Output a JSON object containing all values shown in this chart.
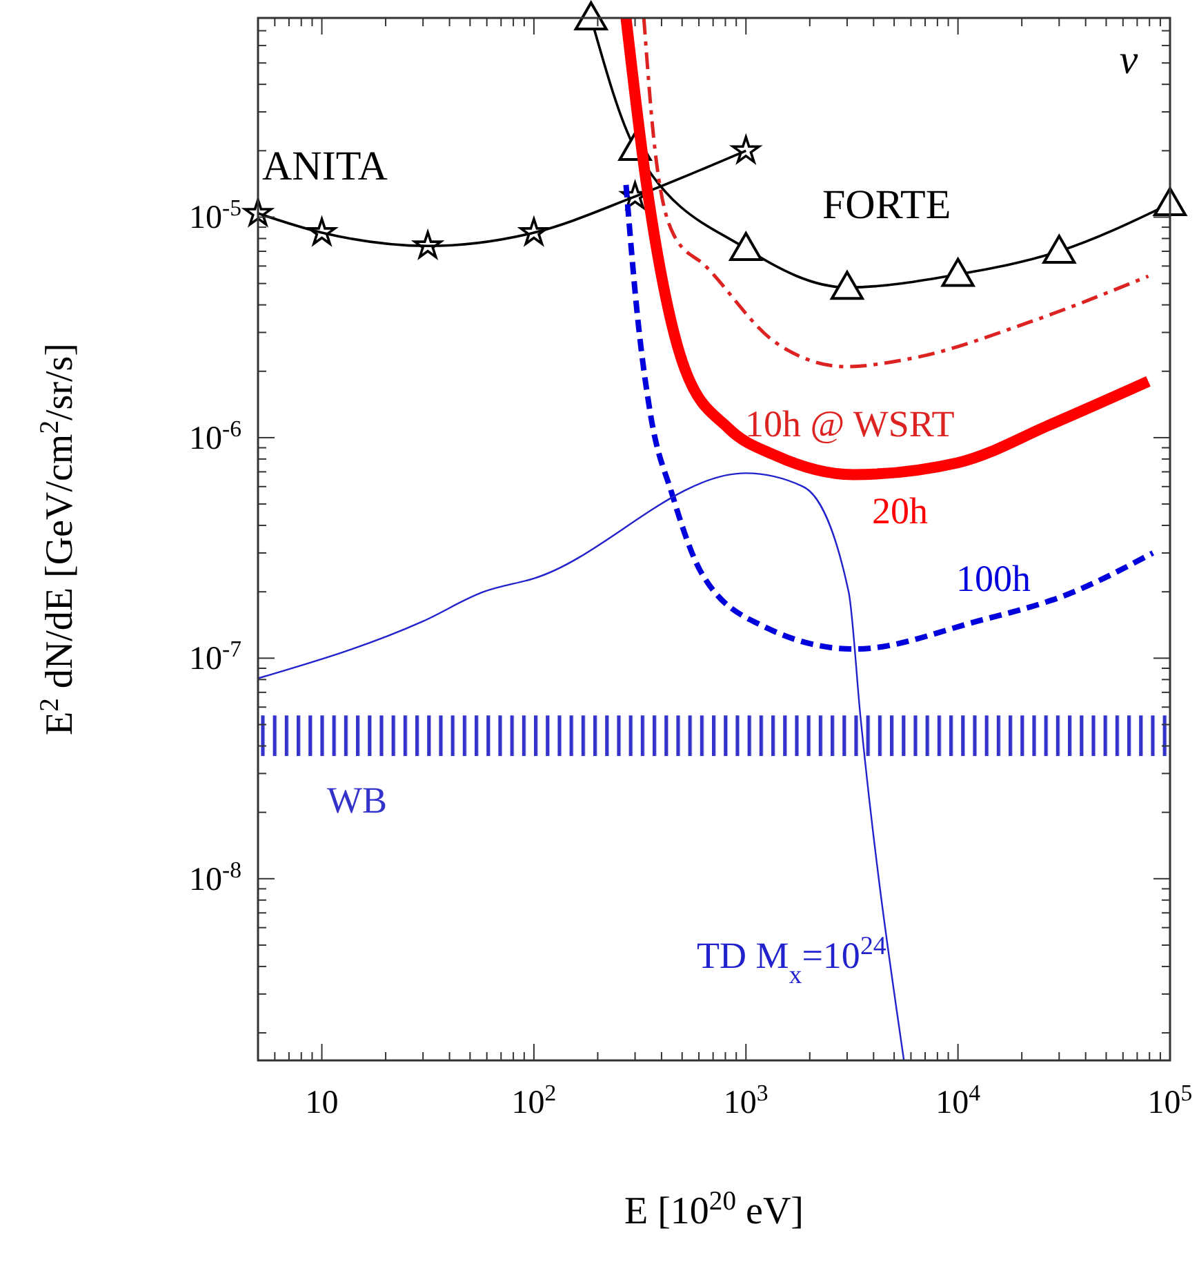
{
  "chart_data": {
    "type": "line",
    "xlabel": "E [10$^{20}$ eV]",
    "ylabel": "E$^{2}$ dN/dE [GeV/cm$^{2}$/sr/s]",
    "log": "xy",
    "grid": false,
    "xlim": [
      5,
      100000
    ],
    "ylim": [
      1.5e-09,
      8e-05
    ],
    "xticks": [
      10,
      {
        "value": 100,
        "label": "10$^{2}$"
      },
      {
        "value": 1000,
        "label": "10$^{3}$"
      },
      {
        "value": 10000,
        "label": "10$^{4}$"
      },
      {
        "value": 100000,
        "label": "10$^{5}$"
      }
    ],
    "yticks": [
      {
        "value": 1e-08,
        "label": "10$^{-8}$"
      },
      {
        "value": 1e-07,
        "label": "10$^{-7}$"
      },
      {
        "value": 1e-06,
        "label": "10$^{-6}$"
      },
      {
        "value": 1e-05,
        "label": "10$^{-5}$"
      }
    ],
    "series": [
      {
        "name": "ANITA",
        "color": "#000000",
        "marker": "star",
        "line_style": "solid",
        "x": [
          5,
          10,
          31.6,
          100,
          300,
          1000
        ],
        "values": [
          1.04e-05,
          8.5e-06,
          7.4e-06,
          8.5e-06,
          1.24e-05,
          2e-05
        ]
      },
      {
        "name": "FORTE",
        "color": "#000000",
        "marker": "triangle",
        "line_style": "solid",
        "x": [
          186,
          300,
          1000,
          3000,
          10000,
          30000,
          100000
        ],
        "values": [
          8e-05,
          2.05e-05,
          7.2e-06,
          4.8e-06,
          5.5e-06,
          7e-06,
          1.15e-05
        ]
      },
      {
        "name": "10h @ WSRT",
        "color": "#dd2222",
        "marker": "none",
        "line_style": "dashdot",
        "x": [
          330,
          367,
          457,
          645,
          1380,
          2950,
          6200,
          21900,
          79000
        ],
        "values": [
          8e-05,
          2.3e-05,
          8.3e-06,
          6e-06,
          2.7e-06,
          2.1e-06,
          2.3e-06,
          3.35e-06,
          5.4e-06
        ]
      },
      {
        "name": "20h",
        "color": "#ff0000",
        "marker": "none",
        "line_style": "solid",
        "x": [
          272,
          340,
          400,
          515,
          830,
          1380,
          3200,
          10000,
          27500,
          79000
        ],
        "values": [
          8e-05,
          1.4e-05,
          5.4e-06,
          2.05e-06,
          1.1e-06,
          8.3e-07,
          6.8e-07,
          7.7e-07,
          1.15e-06,
          1.8e-06
        ]
      },
      {
        "name": "100h",
        "color": "#0000dd",
        "marker": "none",
        "line_style": "dashed",
        "x": [
          272,
          310,
          355,
          447,
          615,
          1200,
          3240,
          12300,
          33000,
          83000
        ],
        "values": [
          1.4e-05,
          3.35e-06,
          1.27e-06,
          5.6e-07,
          2.45e-07,
          1.4e-07,
          1.1e-07,
          1.47e-07,
          1.95e-07,
          3e-07
        ]
      },
      {
        "name": "TD M$_{x}$=10$^{24}$",
        "color": "#2222cc",
        "marker": "none",
        "line_style": "solid",
        "x": [
          5,
          30,
          58,
          100,
          1000,
          1860,
          3050,
          3470,
          5560
        ],
        "values": [
          8.1e-08,
          1.47e-07,
          2e-07,
          2.3e-07,
          6.9e-07,
          6e-07,
          2e-07,
          5.4e-08,
          1.5e-09
        ]
      }
    ],
    "bands": [
      {
        "axis": "y",
        "from": 3.6e-08,
        "to": 5.5e-08,
        "color": "#3333cc",
        "label": "WB"
      }
    ],
    "annotations": [
      "ν"
    ]
  }
}
